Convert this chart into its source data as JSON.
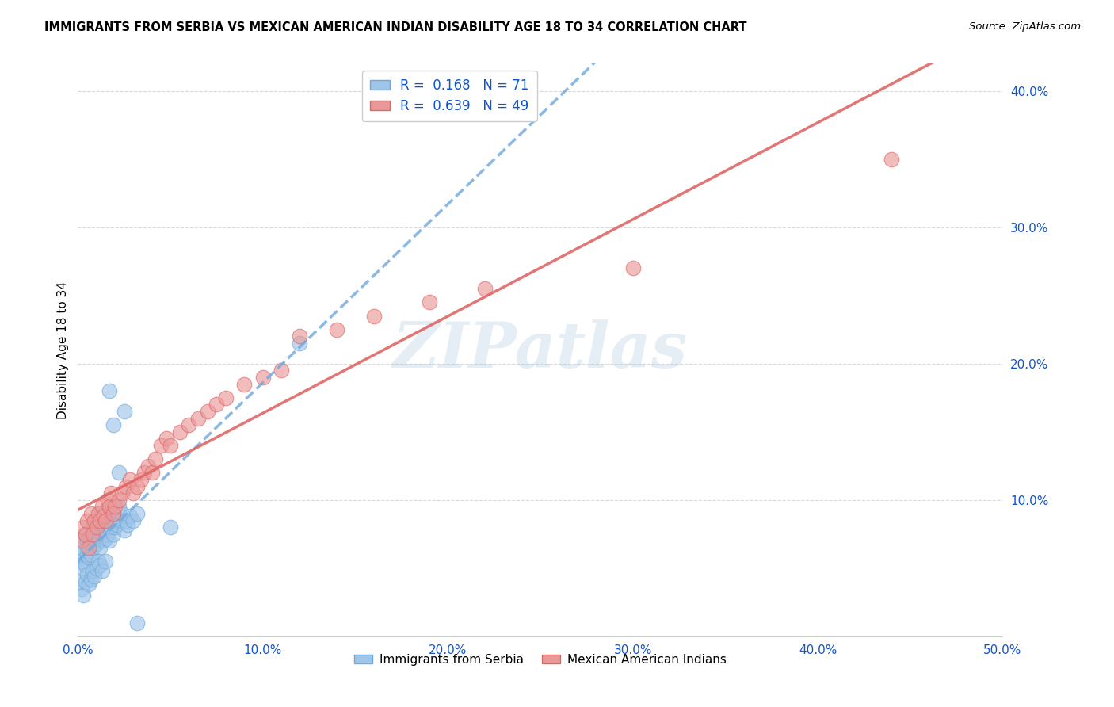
{
  "title": "IMMIGRANTS FROM SERBIA VS MEXICAN AMERICAN INDIAN DISABILITY AGE 18 TO 34 CORRELATION CHART",
  "source": "Source: ZipAtlas.com",
  "ylabel": "Disability Age 18 to 34",
  "xlim": [
    0.0,
    0.5
  ],
  "ylim": [
    0.0,
    0.42
  ],
  "xticks": [
    0.0,
    0.1,
    0.2,
    0.3,
    0.4,
    0.5
  ],
  "yticks": [
    0.0,
    0.1,
    0.2,
    0.3,
    0.4
  ],
  "xtick_labels": [
    "0.0%",
    "10.0%",
    "20.0%",
    "30.0%",
    "40.0%",
    "50.0%"
  ],
  "ytick_labels": [
    "",
    "10.0%",
    "20.0%",
    "30.0%",
    "40.0%"
  ],
  "serbia_color": "#9fc5e8",
  "serbia_edge_color": "#6fa8dc",
  "mexican_color": "#ea9999",
  "mexican_edge_color": "#e06666",
  "serbia_line_color": "#6fa8dc",
  "mexican_line_color": "#e06666",
  "serbia_R": 0.168,
  "serbia_N": 71,
  "mexican_R": 0.639,
  "mexican_N": 49,
  "serbia_x": [
    0.001,
    0.002,
    0.002,
    0.003,
    0.003,
    0.004,
    0.004,
    0.005,
    0.005,
    0.005,
    0.006,
    0.006,
    0.007,
    0.007,
    0.008,
    0.008,
    0.009,
    0.009,
    0.01,
    0.01,
    0.011,
    0.011,
    0.012,
    0.012,
    0.013,
    0.013,
    0.014,
    0.014,
    0.015,
    0.015,
    0.016,
    0.016,
    0.017,
    0.017,
    0.018,
    0.018,
    0.019,
    0.019,
    0.02,
    0.02,
    0.021,
    0.022,
    0.023,
    0.024,
    0.025,
    0.026,
    0.027,
    0.028,
    0.03,
    0.032,
    0.001,
    0.002,
    0.003,
    0.004,
    0.005,
    0.006,
    0.007,
    0.008,
    0.009,
    0.01,
    0.011,
    0.012,
    0.013,
    0.015,
    0.017,
    0.019,
    0.022,
    0.025,
    0.032,
    0.05,
    0.12
  ],
  "serbia_y": [
    0.055,
    0.06,
    0.065,
    0.05,
    0.07,
    0.052,
    0.075,
    0.06,
    0.065,
    0.07,
    0.058,
    0.072,
    0.06,
    0.075,
    0.065,
    0.08,
    0.07,
    0.075,
    0.068,
    0.085,
    0.07,
    0.08,
    0.065,
    0.09,
    0.075,
    0.085,
    0.07,
    0.078,
    0.072,
    0.088,
    0.075,
    0.092,
    0.07,
    0.085,
    0.08,
    0.088,
    0.075,
    0.09,
    0.08,
    0.085,
    0.082,
    0.095,
    0.085,
    0.09,
    0.078,
    0.085,
    0.082,
    0.088,
    0.085,
    0.09,
    0.04,
    0.035,
    0.03,
    0.04,
    0.045,
    0.038,
    0.042,
    0.048,
    0.044,
    0.05,
    0.055,
    0.052,
    0.048,
    0.055,
    0.18,
    0.155,
    0.12,
    0.165,
    0.01,
    0.08,
    0.215
  ],
  "mexican_x": [
    0.002,
    0.003,
    0.004,
    0.005,
    0.006,
    0.007,
    0.008,
    0.009,
    0.01,
    0.011,
    0.012,
    0.013,
    0.014,
    0.015,
    0.016,
    0.017,
    0.018,
    0.019,
    0.02,
    0.022,
    0.024,
    0.026,
    0.028,
    0.03,
    0.032,
    0.034,
    0.036,
    0.038,
    0.04,
    0.042,
    0.045,
    0.048,
    0.05,
    0.055,
    0.06,
    0.065,
    0.07,
    0.075,
    0.08,
    0.09,
    0.1,
    0.11,
    0.12,
    0.14,
    0.16,
    0.19,
    0.22,
    0.3,
    0.44
  ],
  "mexican_y": [
    0.07,
    0.08,
    0.075,
    0.085,
    0.065,
    0.09,
    0.075,
    0.085,
    0.08,
    0.09,
    0.085,
    0.095,
    0.088,
    0.085,
    0.1,
    0.095,
    0.105,
    0.09,
    0.095,
    0.1,
    0.105,
    0.11,
    0.115,
    0.105,
    0.11,
    0.115,
    0.12,
    0.125,
    0.12,
    0.13,
    0.14,
    0.145,
    0.14,
    0.15,
    0.155,
    0.16,
    0.165,
    0.17,
    0.175,
    0.185,
    0.19,
    0.195,
    0.22,
    0.225,
    0.235,
    0.245,
    0.255,
    0.27,
    0.35
  ],
  "watermark_text": "ZIPatlas",
  "background_color": "#ffffff",
  "grid_color": "#d9d9d9",
  "legend_text_color": "#1155cc"
}
